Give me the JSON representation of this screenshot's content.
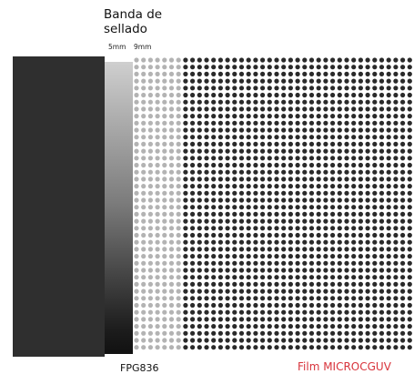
{
  "title": "Banda de\nsellado",
  "dimensions": {
    "band_5": "5mm",
    "band_9": "9mm"
  },
  "labels": {
    "left_product": "FPG836",
    "right_product": "Film MICROCGUV"
  },
  "colors": {
    "left_bar": "#2f2f2f",
    "dot": "#2a2a2a",
    "dot_overlay": "#9a9a9a",
    "film_label": "#d8333b",
    "text": "#111111"
  }
}
